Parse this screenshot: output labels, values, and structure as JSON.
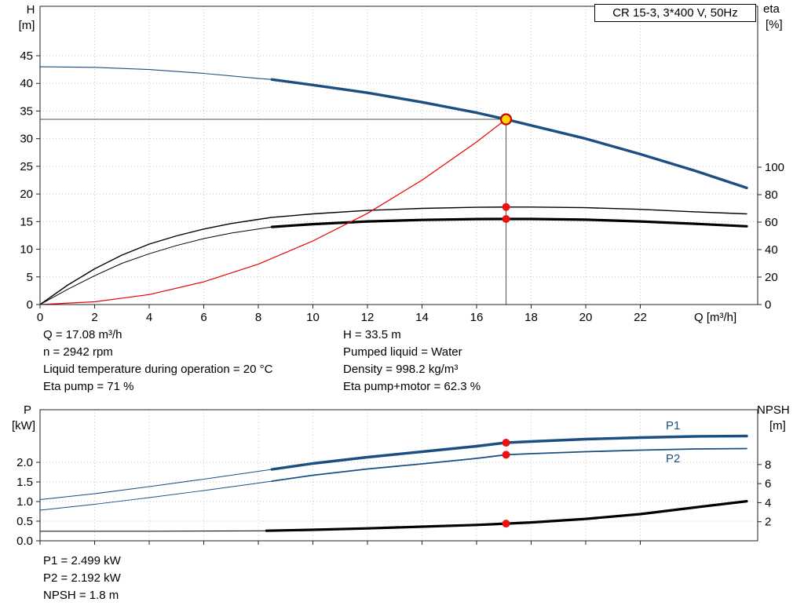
{
  "title_box": "CR 15-3, 3*400 V, 50Hz",
  "top_chart": {
    "y_left_label": "H",
    "y_left_unit": "[m]",
    "y_right_label": "eta",
    "y_right_unit": "[%]",
    "x_label": "Q [m³/h]"
  },
  "bottom_chart": {
    "y_left_label": "P",
    "y_left_unit": "[kW]",
    "y_right_label": "NPSH",
    "y_right_unit": "[m]",
    "p1_label": "P1",
    "p2_label": "P2"
  },
  "annotations": {
    "left": [
      "Q = 17.08 m³/h",
      "n = 2942 rpm",
      "Liquid temperature during operation = 20 °C",
      "Eta pump = 71 %"
    ],
    "right": [
      "H = 33.5 m",
      "Pumped liquid = Water",
      "Density = 998.2 kg/m³",
      "Eta pump+motor = 62.3 %"
    ]
  },
  "bottom_annotations": [
    "P1 = 2.499 kW",
    "P2 = 2.192 kW",
    "NPSH = 1.8 m"
  ],
  "colors": {
    "blue": "#1b4f82",
    "black": "#000000",
    "red": "#e60000",
    "duty_fill": "#ffd400",
    "duty_ring": "#cc0000",
    "dot": "#ee1111",
    "crosshair": "#555555",
    "grid": "#c8c8c8"
  },
  "chart_data": [
    {
      "type": "line",
      "title": "CR 15-3, 3*400 V, 50Hz",
      "xlabel": "Q [m³/h]",
      "ylabel_left": "H [m]",
      "ylabel_right": "eta [%]",
      "xlim": [
        0,
        26.3
      ],
      "ylim_left": [
        0,
        48
      ],
      "ylim_right": [
        0,
        100
      ],
      "x_ticks": [
        0,
        2,
        4,
        6,
        8,
        10,
        12,
        14,
        16,
        18,
        20,
        22
      ],
      "show_x_labels": true,
      "y_ticks_left": [
        0,
        5,
        10,
        15,
        20,
        25,
        30,
        35,
        40,
        45
      ],
      "y_ticks_right": [
        0,
        20,
        40,
        60,
        80,
        100
      ],
      "grid": "dotted",
      "duty_point": {
        "Q": 17.08,
        "H": 33.5
      },
      "series": [
        {
          "name": "H",
          "axis": "left",
          "color": "#1b4f82",
          "x": [
            0,
            2,
            4,
            6,
            8,
            8.5,
            10,
            12,
            14,
            16,
            17.08,
            18,
            20,
            22,
            24,
            25.9
          ],
          "y": [
            43,
            42.9,
            42.5,
            41.8,
            40.9,
            40.7,
            39.7,
            38.3,
            36.6,
            34.7,
            33.5,
            32.4,
            30.0,
            27.2,
            24.2,
            21.1
          ]
        },
        {
          "name": "Eta pump",
          "axis": "right",
          "color": "#000000",
          "x": [
            0,
            1,
            2,
            3,
            4,
            5,
            6,
            7,
            8,
            8.5,
            10,
            12,
            14,
            16,
            17.08,
            18,
            20,
            22,
            24,
            25.9
          ],
          "y": [
            0,
            14,
            26,
            36,
            44,
            50,
            55,
            59,
            62,
            63.5,
            66,
            68.5,
            70,
            70.8,
            71,
            71,
            70.5,
            69.3,
            67.5,
            66
          ]
        },
        {
          "name": "Eta pump+motor",
          "axis": "right",
          "color": "#000000",
          "x": [
            0,
            1,
            2,
            3,
            4,
            5,
            6,
            7,
            8,
            8.5,
            10,
            12,
            14,
            16,
            17.08,
            18,
            20,
            22,
            24,
            25.9
          ],
          "y": [
            0,
            11,
            21,
            30,
            37,
            43,
            48,
            52,
            55,
            56.5,
            58.5,
            60.5,
            61.6,
            62.2,
            62.3,
            62.3,
            61.8,
            60.5,
            58.8,
            57
          ]
        },
        {
          "name": "System curve",
          "axis": "left",
          "color": "#e60000",
          "x": [
            0,
            2,
            4,
            6,
            8,
            10,
            12,
            14,
            16,
            17.08
          ],
          "y": [
            0,
            0.5,
            1.8,
            4.1,
            7.3,
            11.5,
            16.5,
            22.5,
            29.4,
            33.5
          ]
        }
      ],
      "markers": [
        {
          "style": "duty",
          "axis": "left",
          "x": 17.08,
          "value": 33.5
        },
        {
          "style": "dot",
          "axis": "right",
          "x": 17.08,
          "value": 71
        },
        {
          "style": "dot",
          "axis": "right",
          "x": 17.08,
          "value": 62.3
        }
      ]
    },
    {
      "type": "line",
      "title": "",
      "xlabel": "Q [m³/h]",
      "ylabel_left": "P [kW]",
      "ylabel_right": "NPSH [m]",
      "xlim": [
        0,
        26.3
      ],
      "ylim_left": [
        0,
        3.3
      ],
      "ylim_right": [
        0,
        13.7
      ],
      "x_ticks": [
        0,
        2,
        4,
        6,
        8,
        10,
        12,
        14,
        16,
        18,
        20,
        22
      ],
      "show_x_labels": false,
      "y_ticks_left": [
        0,
        0.5,
        1,
        1.5,
        2
      ],
      "y_left_decimals": 1,
      "y_ticks_right": [
        2,
        4,
        6,
        8
      ],
      "grid": "dotted",
      "series": [
        {
          "name": "P1",
          "axis": "left",
          "color": "#1b4f82",
          "x": [
            0,
            2,
            4,
            6,
            8,
            8.5,
            10,
            12,
            14,
            16,
            17.08,
            18,
            20,
            22,
            24,
            25.9
          ],
          "y": [
            1.05,
            1.2,
            1.38,
            1.57,
            1.77,
            1.82,
            1.97,
            2.13,
            2.27,
            2.41,
            2.499,
            2.53,
            2.59,
            2.63,
            2.66,
            2.67
          ]
        },
        {
          "name": "P2",
          "axis": "left",
          "color": "#1b4f82",
          "x": [
            0,
            2,
            4,
            6,
            8,
            8.5,
            10,
            12,
            14,
            16,
            17.08,
            18,
            20,
            22,
            24,
            25.9
          ],
          "y": [
            0.78,
            0.93,
            1.1,
            1.28,
            1.47,
            1.52,
            1.67,
            1.83,
            1.96,
            2.1,
            2.192,
            2.22,
            2.27,
            2.31,
            2.34,
            2.35
          ]
        },
        {
          "name": "NPSH",
          "axis": "right",
          "color": "#000000",
          "x": [
            0,
            4,
            8.3,
            10,
            12,
            14,
            16,
            17.08,
            18,
            20,
            22,
            24,
            25.9
          ],
          "y": [
            1.0,
            1.0,
            1.05,
            1.15,
            1.3,
            1.48,
            1.66,
            1.8,
            1.93,
            2.3,
            2.8,
            3.5,
            4.15
          ]
        }
      ],
      "markers": [
        {
          "style": "dot",
          "axis": "left",
          "x": 17.08,
          "value": 2.499
        },
        {
          "style": "dot",
          "axis": "left",
          "x": 17.08,
          "value": 2.192
        },
        {
          "style": "dot",
          "axis": "right",
          "x": 17.08,
          "value": 1.8
        }
      ]
    }
  ]
}
